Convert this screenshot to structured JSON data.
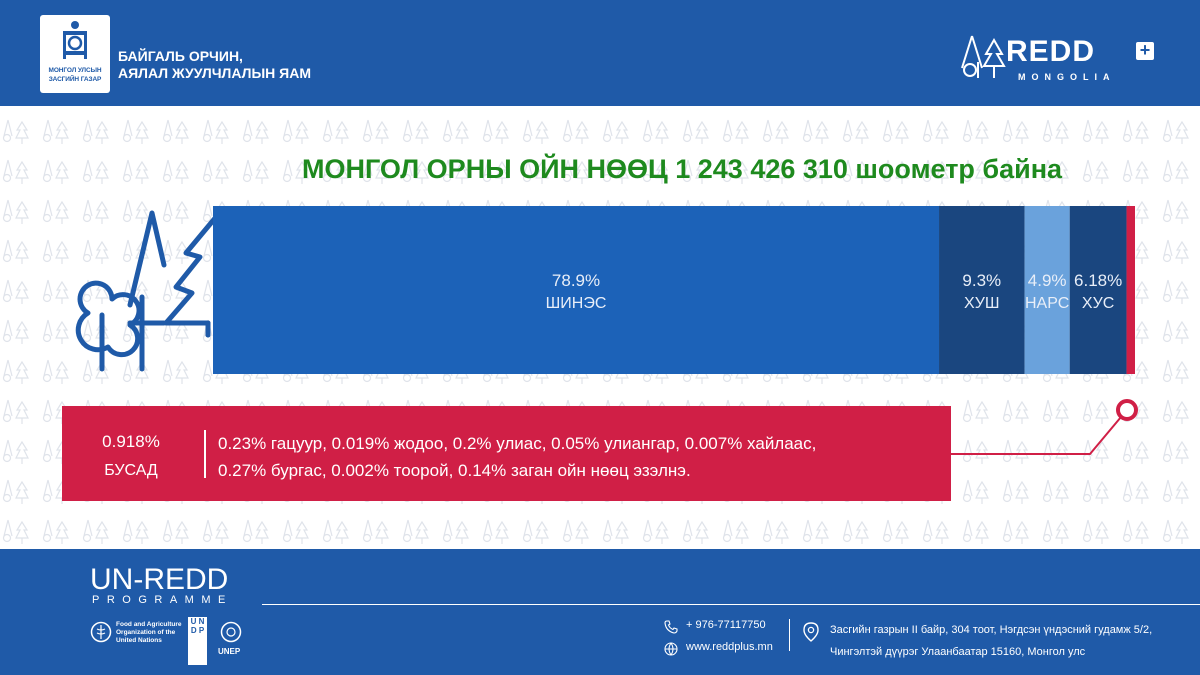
{
  "header": {
    "logo_caption_line1": "МОНГОЛ УЛСЫН",
    "logo_caption_line2": "ЗАСГИЙН ГАЗАР",
    "ministry_line1": "БАЙГАЛЬ ОРЧИН,",
    "ministry_line2": "АЯЛАЛ ЖУУЛЧЛАЛЫН ЯАМ",
    "redd_main": "REDD",
    "redd_plus": "+",
    "redd_sub": "MONGOLIA"
  },
  "chart_data": {
    "type": "bar",
    "orientation": "horizontal-stacked",
    "title": "МОНГОЛ ОРНЫ ОЙН НӨӨЦ 1 243 426 310 шоометр байна",
    "series": [
      {
        "name": "ШИНЭС",
        "label": "78.9%",
        "value": 78.9,
        "color": "#1c62b8"
      },
      {
        "name": "ХУШ",
        "label": "9.3%",
        "value": 9.3,
        "color": "#1a467f"
      },
      {
        "name": "НАРС",
        "label": "4.9%",
        "value": 4.9,
        "color": "#6aa2dc"
      },
      {
        "name": "ХУС",
        "label": "6.18%",
        "value": 6.18,
        "color": "#1a467f"
      },
      {
        "name": "БУСАД",
        "label": "0.918%",
        "value": 0.918,
        "color": "#d01f46"
      }
    ],
    "other_breakdown": {
      "percent": "0.918%",
      "name": "БУСАД",
      "line1": "0.23% гацуур, 0.019% жодоо, 0.2% улиас, 0.05% улиангар, 0.007% хайлаас,",
      "line2": "0.27% бургас, 0.002% тоорой, 0.14% заган ойн нөөц эзэлнэ."
    }
  },
  "footer": {
    "programme_title": "UN-REDD",
    "programme_sub": "PROGRAMME",
    "fao_line1": "Food and Agriculture",
    "fao_line2": "Organization of the",
    "fao_line3": "United Nations",
    "undp": "U N D P",
    "unep": "UNEP",
    "phone": "+ 976-77117750",
    "website": "www.reddplus.mn",
    "address_line1": "Засгийн газрын II байр, 304 тоот, Нэгдсэн үндэсний гудамж 5/2,",
    "address_line2": "Чингэлтэй дүүрэг Улаанбаатар 15160, Монгол улс"
  },
  "colors": {
    "header_blue": "#1f5aa8",
    "title_green": "#1e8a1e",
    "accent_red": "#d01f46"
  }
}
